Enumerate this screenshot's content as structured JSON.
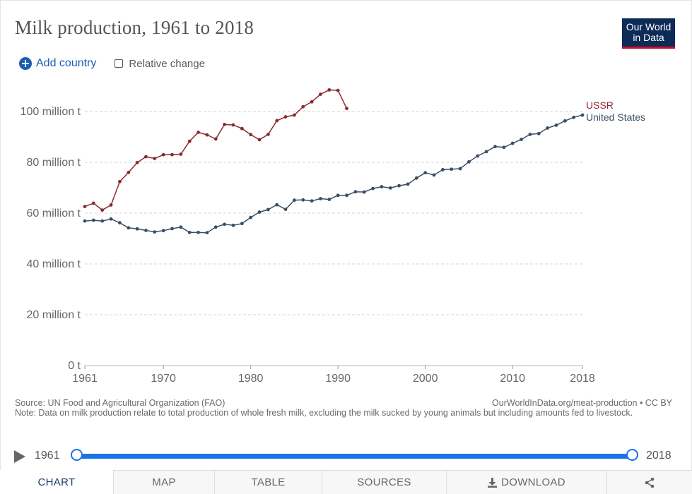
{
  "title": "Milk production, 1961 to 2018",
  "logo": {
    "line1": "Our World",
    "line2": "in Data"
  },
  "controls": {
    "add_country": "Add country",
    "relative_change": "Relative change"
  },
  "chart_data": {
    "type": "line",
    "title": "Milk production, 1961 to 2018",
    "xlabel": "",
    "ylabel": "",
    "xlim": [
      1961,
      2018
    ],
    "ylim": [
      0,
      100000000
    ],
    "grid": true,
    "x_ticks": [
      {
        "value": 1961,
        "label": "1961"
      },
      {
        "value": 1970,
        "label": "1970"
      },
      {
        "value": 1980,
        "label": "1980"
      },
      {
        "value": 1990,
        "label": "1990"
      },
      {
        "value": 2000,
        "label": "2000"
      },
      {
        "value": 2010,
        "label": "2010"
      },
      {
        "value": 2018,
        "label": "2018"
      }
    ],
    "y_ticks": [
      {
        "value": 0,
        "label": "0 t"
      },
      {
        "value": 20000000,
        "label": "20 million t"
      },
      {
        "value": 40000000,
        "label": "40 million t"
      },
      {
        "value": 60000000,
        "label": "60 million t"
      },
      {
        "value": 80000000,
        "label": "80 million t"
      },
      {
        "value": 100000000,
        "label": "100 million t"
      }
    ],
    "series": [
      {
        "name": "USSR",
        "color": "#8c2a2f",
        "x": [
          1961,
          1962,
          1963,
          1964,
          1965,
          1966,
          1967,
          1968,
          1969,
          1970,
          1971,
          1972,
          1973,
          1974,
          1975,
          1976,
          1977,
          1978,
          1979,
          1980,
          1981,
          1982,
          1983,
          1984,
          1985,
          1986,
          1987,
          1988,
          1989,
          1990,
          1991
        ],
        "values": [
          62.6,
          63.9,
          61.2,
          63.2,
          72.4,
          76.0,
          79.9,
          82.2,
          81.5,
          83.0,
          83.0,
          83.2,
          88.3,
          91.8,
          90.8,
          89.2,
          94.9,
          94.7,
          93.3,
          90.9,
          88.9,
          91.0,
          96.4,
          97.9,
          98.6,
          101.9,
          103.8,
          106.8,
          108.5,
          108.3,
          101.2
        ]
      },
      {
        "name": "United States",
        "color": "#3c4e66",
        "x": [
          1961,
          1962,
          1963,
          1964,
          1965,
          1966,
          1967,
          1968,
          1969,
          1970,
          1971,
          1972,
          1973,
          1974,
          1975,
          1976,
          1977,
          1978,
          1979,
          1980,
          1981,
          1982,
          1983,
          1984,
          1985,
          1986,
          1987,
          1988,
          1989,
          1990,
          1991,
          1992,
          1993,
          1994,
          1995,
          1996,
          1997,
          1998,
          1999,
          2000,
          2001,
          2002,
          2003,
          2004,
          2005,
          2006,
          2007,
          2008,
          2009,
          2010,
          2011,
          2012,
          2013,
          2014,
          2015,
          2016,
          2017,
          2018
        ],
        "values": [
          56.9,
          57.2,
          56.9,
          57.7,
          56.2,
          54.2,
          53.8,
          53.2,
          52.6,
          53.1,
          53.9,
          54.5,
          52.4,
          52.4,
          52.3,
          54.5,
          55.6,
          55.2,
          55.9,
          58.3,
          60.4,
          61.4,
          63.3,
          61.5,
          65.1,
          65.2,
          64.8,
          65.7,
          65.4,
          67.0,
          67.0,
          68.4,
          68.3,
          69.7,
          70.4,
          69.9,
          70.8,
          71.4,
          73.8,
          75.9,
          75.0,
          77.1,
          77.3,
          77.5,
          80.2,
          82.5,
          84.2,
          86.2,
          85.9,
          87.5,
          89.0,
          91.0,
          91.3,
          93.5,
          94.6,
          96.3,
          97.7,
          98.6
        ]
      }
    ],
    "legend": [
      "USSR",
      "United States"
    ],
    "annotations": []
  },
  "source": {
    "text": "Source: UN Food and Agricultural Organization (FAO)",
    "note": "Note: Data on milk production relate to total production of whole fresh milk, excluding the milk sucked by young animals but including amounts fed to livestock.",
    "url": "OurWorldInData.org/meat-production • CC BY"
  },
  "timeline": {
    "start": "1961",
    "end": "2018"
  },
  "tabs": {
    "chart": "CHART",
    "map": "MAP",
    "table": "TABLE",
    "sources": "SOURCES",
    "download": "DOWNLOAD"
  },
  "colors": {
    "accent": "#1a73e8",
    "logo_bg": "#0d2b57",
    "logo_bar": "#c8102e"
  }
}
